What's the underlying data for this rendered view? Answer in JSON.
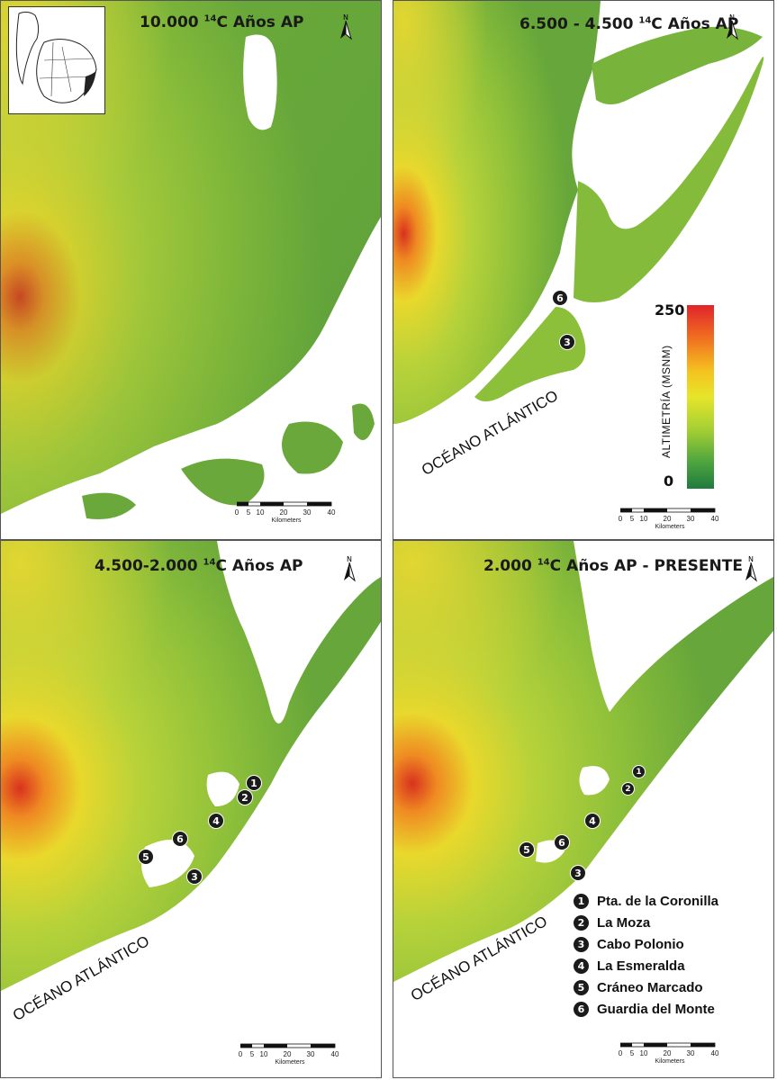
{
  "panels": [
    {
      "title_prefix": "10.000",
      "title_sup": "14",
      "title_suffix": "C",
      "title_bold": "Años AP"
    },
    {
      "title_prefix": "6.500 - 4.500",
      "title_sup": "14",
      "title_suffix": "C",
      "title_bold": "Años AP"
    },
    {
      "title_prefix": "4.500-2.000",
      "title_sup": "14",
      "title_suffix": "C",
      "title_bold": "Años AP"
    },
    {
      "title_prefix": "2.000",
      "title_sup": "14",
      "title_suffix": "C",
      "title_bold": "Años AP - PRESENTE"
    }
  ],
  "north_label": "N",
  "ocean_label": "OCÉANO ATLÁNTICO",
  "scale": {
    "ticks": [
      "0",
      "5",
      "10",
      "20",
      "30",
      "40"
    ],
    "unit": "Kilometers"
  },
  "altimetry_legend": {
    "max": "250",
    "min": "0",
    "label": "ALTIMETRÍA (MSNM)",
    "colors": [
      "#e1232b",
      "#f07020",
      "#f5c21f",
      "#e6e52a",
      "#a4cf34",
      "#4fa63e",
      "#1f7a3f"
    ]
  },
  "sites": [
    {
      "num": "1",
      "name": "Pta. de la Coronilla"
    },
    {
      "num": "2",
      "name": "La Moza"
    },
    {
      "num": "3",
      "name": "Cabo Polonio"
    },
    {
      "num": "4",
      "name": "La Esmeralda"
    },
    {
      "num": "5",
      "name": "Cráneo Marcado"
    },
    {
      "num": "6",
      "name": "Guardia del Monte"
    }
  ],
  "colors": {
    "land_low": "#5a9a3a",
    "land_mid": "#8fc23c",
    "land_high": "#e4e030",
    "peak": "#d83a22",
    "water": "#ffffff"
  }
}
